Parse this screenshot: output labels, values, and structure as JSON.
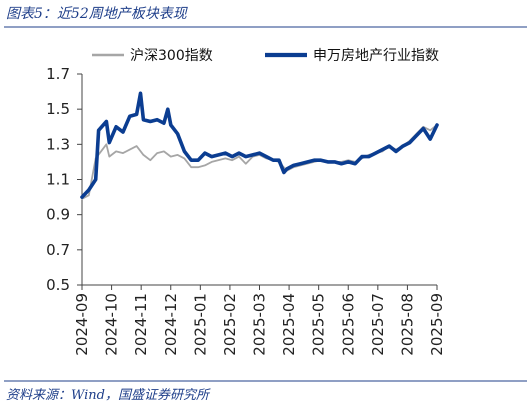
{
  "figure": {
    "title": "图表5：近52周地产板块表现",
    "source": "资料来源：Wind，国盛证券研究所"
  },
  "colors": {
    "csi300": "#a6a6a6",
    "sw_realestate": "#0b3d91",
    "frame": "#1f3f8a",
    "axis": "#444444"
  },
  "chart_data": {
    "type": "line",
    "title": "",
    "xlabel": "",
    "ylabel": "",
    "ylim": [
      0.5,
      1.7
    ],
    "yticks": [
      0.5,
      0.7,
      0.9,
      1.1,
      1.3,
      1.5,
      1.7
    ],
    "x_tick_labels": [
      "2024-09",
      "2024-10",
      "2024-11",
      "2024-12",
      "2025-01",
      "2025-02",
      "2025-03",
      "2025-04",
      "2025-05",
      "2025-06",
      "2025-07",
      "2025-08",
      "2025-09"
    ],
    "legend_position": "top",
    "grid": false,
    "series": [
      {
        "name": "沪深300指数",
        "color_key": "csi300",
        "x": [
          "2024-09-13",
          "2024-09-20",
          "2024-09-27",
          "2024-10-08",
          "2024-10-11",
          "2024-10-18",
          "2024-10-25",
          "2024-11-01",
          "2024-11-08",
          "2024-11-15",
          "2024-11-22",
          "2024-11-29",
          "2024-12-06",
          "2024-12-13",
          "2024-12-20",
          "2024-12-27",
          "2025-01-03",
          "2025-01-10",
          "2025-01-17",
          "2025-01-24",
          "2025-02-07",
          "2025-02-14",
          "2025-02-21",
          "2025-02-28",
          "2025-03-07",
          "2025-03-14",
          "2025-03-21",
          "2025-03-28",
          "2025-04-03",
          "2025-04-11",
          "2025-04-18",
          "2025-04-25",
          "2025-05-09",
          "2025-05-16",
          "2025-05-23",
          "2025-05-30",
          "2025-06-06",
          "2025-06-13",
          "2025-06-20",
          "2025-06-27",
          "2025-07-04",
          "2025-07-11",
          "2025-07-18",
          "2025-07-25",
          "2025-08-01",
          "2025-08-08",
          "2025-08-15",
          "2025-08-22",
          "2025-08-29",
          "2025-09-05",
          "2025-09-12"
        ],
        "values": [
          0.99,
          1.01,
          1.22,
          1.3,
          1.23,
          1.26,
          1.25,
          1.27,
          1.29,
          1.24,
          1.21,
          1.25,
          1.26,
          1.23,
          1.24,
          1.22,
          1.17,
          1.17,
          1.18,
          1.2,
          1.22,
          1.21,
          1.23,
          1.19,
          1.23,
          1.24,
          1.22,
          1.21,
          1.2,
          1.15,
          1.17,
          1.18,
          1.2,
          1.21,
          1.2,
          1.2,
          1.2,
          1.21,
          1.2,
          1.22,
          1.24,
          1.25,
          1.26,
          1.29,
          1.27,
          1.29,
          1.32,
          1.36,
          1.4,
          1.38,
          1.41
        ]
      },
      {
        "name": "申万房地产行业指数",
        "color_key": "sw_realestate",
        "x": [
          "2024-09-13",
          "2024-09-20",
          "2024-09-27",
          "2024-09-30",
          "2024-10-08",
          "2024-10-11",
          "2024-10-18",
          "2024-10-25",
          "2024-11-01",
          "2024-11-08",
          "2024-11-12",
          "2024-11-15",
          "2024-11-22",
          "2024-11-29",
          "2024-12-06",
          "2024-12-10",
          "2024-12-13",
          "2024-12-20",
          "2024-12-27",
          "2025-01-03",
          "2025-01-10",
          "2025-01-17",
          "2025-01-24",
          "2025-02-07",
          "2025-02-14",
          "2025-02-21",
          "2025-02-28",
          "2025-03-07",
          "2025-03-14",
          "2025-03-21",
          "2025-03-28",
          "2025-04-03",
          "2025-04-08",
          "2025-04-11",
          "2025-04-18",
          "2025-04-25",
          "2025-05-09",
          "2025-05-16",
          "2025-05-23",
          "2025-05-30",
          "2025-06-06",
          "2025-06-13",
          "2025-06-20",
          "2025-06-27",
          "2025-07-04",
          "2025-07-11",
          "2025-07-18",
          "2025-07-25",
          "2025-08-01",
          "2025-08-08",
          "2025-08-15",
          "2025-08-22",
          "2025-08-29",
          "2025-09-05",
          "2025-09-12"
        ],
        "values": [
          1.0,
          1.04,
          1.1,
          1.38,
          1.43,
          1.31,
          1.4,
          1.37,
          1.46,
          1.47,
          1.59,
          1.44,
          1.43,
          1.44,
          1.42,
          1.5,
          1.41,
          1.36,
          1.26,
          1.21,
          1.21,
          1.25,
          1.23,
          1.25,
          1.23,
          1.25,
          1.23,
          1.24,
          1.25,
          1.23,
          1.21,
          1.21,
          1.14,
          1.16,
          1.18,
          1.19,
          1.21,
          1.21,
          1.2,
          1.2,
          1.19,
          1.2,
          1.19,
          1.23,
          1.23,
          1.25,
          1.27,
          1.29,
          1.26,
          1.29,
          1.31,
          1.35,
          1.39,
          1.33,
          1.41
        ]
      }
    ]
  }
}
